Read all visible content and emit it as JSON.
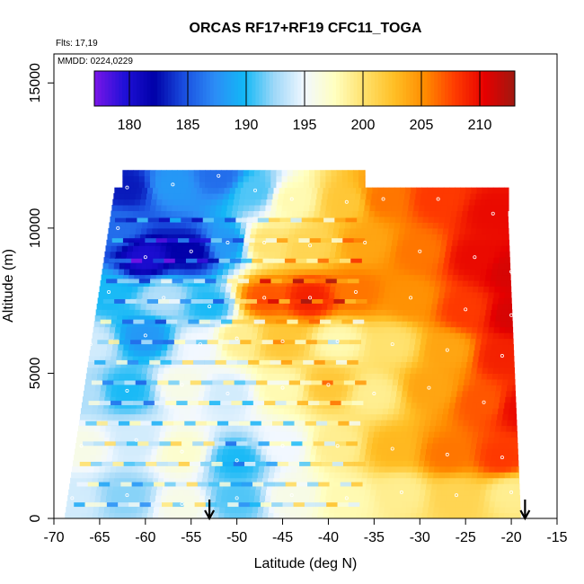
{
  "chart_data": {
    "type": "heatmap",
    "title": "ORCAS RF17+RF19 CFC11_TOGA",
    "flights_note": "Flts: 17,19",
    "date_note": "MMDD: 0224,0229",
    "xlabel": "Latitude (deg N)",
    "ylabel": "Altitude (m)",
    "xlim": [
      -70,
      -15
    ],
    "ylim": [
      0,
      16000
    ],
    "x_ticks": [
      -70,
      -65,
      -60,
      -55,
      -50,
      -45,
      -40,
      -35,
      -30,
      -25,
      -20,
      -15
    ],
    "x_tick_labels": [
      "-70",
      "-65",
      "-60",
      "-55",
      "-50",
      "-45",
      "-40",
      "-35",
      "-30",
      "-25",
      "-20",
      "-15"
    ],
    "y_ticks": [
      0,
      5000,
      10000,
      15000
    ],
    "y_tick_labels": [
      "0",
      "5000",
      "10000",
      "15000"
    ],
    "colorbar": {
      "range": [
        177,
        213
      ],
      "ticks": [
        180,
        185,
        190,
        195,
        200,
        205,
        210
      ],
      "tick_labels": [
        "180",
        "185",
        "190",
        "195",
        "200",
        "205",
        "210"
      ],
      "colors": [
        "#7a16e8",
        "#2010d8",
        "#0000a8",
        "#1a4fe0",
        "#2c8cf6",
        "#12b8f6",
        "#9fd8f8",
        "#f2f8ff",
        "#ffffc0",
        "#ffe06a",
        "#ffbe24",
        "#ff8c00",
        "#ff3c00",
        "#e60000",
        "#a01810"
      ]
    },
    "grid": false,
    "legend": "top",
    "arrow_latitudes": [
      -53,
      -18.5
    ],
    "anchor_points": [
      {
        "lat": -62,
        "alt": 11400,
        "v": 183
      },
      {
        "lat": -57,
        "alt": 11500,
        "v": 188
      },
      {
        "lat": -52,
        "alt": 11800,
        "v": 186
      },
      {
        "lat": -48,
        "alt": 11300,
        "v": 191
      },
      {
        "lat": -44,
        "alt": 11000,
        "v": 198
      },
      {
        "lat": -38,
        "alt": 10900,
        "v": 202
      },
      {
        "lat": -34,
        "alt": 11000,
        "v": 206
      },
      {
        "lat": -28,
        "alt": 11000,
        "v": 208
      },
      {
        "lat": -22,
        "alt": 10500,
        "v": 210
      },
      {
        "lat": -63,
        "alt": 10000,
        "v": 186
      },
      {
        "lat": -60,
        "alt": 9000,
        "v": 180
      },
      {
        "lat": -55,
        "alt": 9200,
        "v": 182
      },
      {
        "lat": -51,
        "alt": 9500,
        "v": 188
      },
      {
        "lat": -47,
        "alt": 9500,
        "v": 200
      },
      {
        "lat": -42,
        "alt": 9400,
        "v": 201
      },
      {
        "lat": -36,
        "alt": 9500,
        "v": 204
      },
      {
        "lat": -30,
        "alt": 9200,
        "v": 206
      },
      {
        "lat": -24,
        "alt": 9000,
        "v": 210
      },
      {
        "lat": -20,
        "alt": 8500,
        "v": 211
      },
      {
        "lat": -64,
        "alt": 7800,
        "v": 190
      },
      {
        "lat": -58,
        "alt": 7600,
        "v": 193
      },
      {
        "lat": -53,
        "alt": 7300,
        "v": 190
      },
      {
        "lat": -47,
        "alt": 7600,
        "v": 207
      },
      {
        "lat": -42,
        "alt": 7600,
        "v": 209
      },
      {
        "lat": -37,
        "alt": 7800,
        "v": 206
      },
      {
        "lat": -31,
        "alt": 7600,
        "v": 205
      },
      {
        "lat": -25,
        "alt": 7200,
        "v": 208
      },
      {
        "lat": -20,
        "alt": 7000,
        "v": 211
      },
      {
        "lat": -66,
        "alt": 6000,
        "v": 194
      },
      {
        "lat": -60,
        "alt": 6300,
        "v": 188
      },
      {
        "lat": -54,
        "alt": 6000,
        "v": 195
      },
      {
        "lat": -50,
        "alt": 6200,
        "v": 199
      },
      {
        "lat": -45,
        "alt": 6100,
        "v": 202
      },
      {
        "lat": -39,
        "alt": 6100,
        "v": 198
      },
      {
        "lat": -33,
        "alt": 6000,
        "v": 200
      },
      {
        "lat": -27,
        "alt": 5800,
        "v": 204
      },
      {
        "lat": -21,
        "alt": 5600,
        "v": 209
      },
      {
        "lat": -67,
        "alt": 4300,
        "v": 193
      },
      {
        "lat": -62,
        "alt": 4400,
        "v": 190
      },
      {
        "lat": -56,
        "alt": 4600,
        "v": 196
      },
      {
        "lat": -51,
        "alt": 4300,
        "v": 194
      },
      {
        "lat": -45,
        "alt": 4500,
        "v": 198
      },
      {
        "lat": -40,
        "alt": 4600,
        "v": 202
      },
      {
        "lat": -35,
        "alt": 4300,
        "v": 199
      },
      {
        "lat": -29,
        "alt": 4500,
        "v": 204
      },
      {
        "lat": -23,
        "alt": 4000,
        "v": 207
      },
      {
        "lat": -19,
        "alt": 3800,
        "v": 210
      },
      {
        "lat": -67,
        "alt": 2500,
        "v": 196
      },
      {
        "lat": -61,
        "alt": 2700,
        "v": 194
      },
      {
        "lat": -56,
        "alt": 2300,
        "v": 197
      },
      {
        "lat": -50,
        "alt": 2000,
        "v": 190
      },
      {
        "lat": -45,
        "alt": 2500,
        "v": 195
      },
      {
        "lat": -39,
        "alt": 2500,
        "v": 199
      },
      {
        "lat": -33,
        "alt": 2400,
        "v": 203
      },
      {
        "lat": -27,
        "alt": 2200,
        "v": 206
      },
      {
        "lat": -21,
        "alt": 2100,
        "v": 208
      },
      {
        "lat": -68,
        "alt": 700,
        "v": 194
      },
      {
        "lat": -62,
        "alt": 800,
        "v": 192
      },
      {
        "lat": -56,
        "alt": 500,
        "v": 196
      },
      {
        "lat": -50,
        "alt": 700,
        "v": 191
      },
      {
        "lat": -44,
        "alt": 800,
        "v": 196
      },
      {
        "lat": -38,
        "alt": 700,
        "v": 198
      },
      {
        "lat": -32,
        "alt": 900,
        "v": 199
      },
      {
        "lat": -26,
        "alt": 800,
        "v": 201
      },
      {
        "lat": -20,
        "alt": 900,
        "v": 199
      }
    ]
  }
}
